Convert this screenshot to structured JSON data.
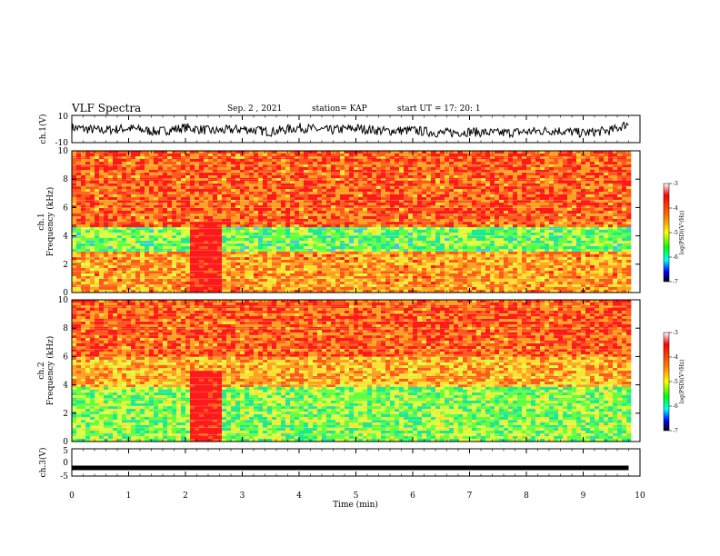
{
  "header": {
    "title": "VLF Spectra",
    "date": "Sep. 2 , 2021",
    "station": "station= KAP",
    "start": "start  UT =   17: 20: 1"
  },
  "chart_data": [
    {
      "type": "line",
      "panel": "ch1-waveform",
      "ylabel": "ch.1(V)",
      "ylim": [
        -10,
        10
      ],
      "yticks": [
        "10",
        "-10"
      ],
      "xlim": [
        0,
        10
      ],
      "series": [
        {
          "x": [
            0,
            0.5,
            1,
            1.5,
            2,
            2.5,
            3,
            3.5,
            4,
            4.5,
            5,
            5.5,
            6,
            6.5,
            7,
            7.5,
            8,
            8.5,
            9,
            9.5,
            9.8
          ],
          "y": [
            1,
            -1,
            0.5,
            -2,
            1,
            -1.5,
            0,
            -2,
            1,
            -1,
            0.5,
            -1.5,
            -1,
            -3,
            -2,
            -3,
            -2,
            -1,
            -3,
            -1,
            4
          ]
        }
      ]
    },
    {
      "type": "heatmap",
      "panel": "ch1-spectrogram",
      "ylabel_top": "ch.1",
      "ylabel": "Frequency (kHz)",
      "ylim": [
        0,
        10
      ],
      "yticks": [
        "0",
        "2",
        "4",
        "6",
        "8",
        "10"
      ],
      "xlim": [
        0,
        10
      ],
      "data_extent_min": 9.8,
      "colorbar": {
        "label": "log(PSD)(V²/Hz)",
        "ticks": [
          "-3",
          "-4",
          "-5",
          "-6",
          "-7"
        ],
        "range": [
          -7,
          -3
        ]
      },
      "dominant_bands_kHz": [
        {
          "from": 0,
          "to": 2.8,
          "log_psd": -4.2
        },
        {
          "from": 2.8,
          "to": 4.6,
          "log_psd": -5.4
        },
        {
          "from": 4.6,
          "to": 10,
          "log_psd": -3.8
        }
      ],
      "anomaly_interval_min": [
        2.1,
        2.65
      ]
    },
    {
      "type": "heatmap",
      "panel": "ch2-spectrogram",
      "ylabel_top": "ch.2",
      "ylabel": "Frequency (kHz)",
      "ylim": [
        0,
        10
      ],
      "yticks": [
        "0",
        "2",
        "4",
        "6",
        "8",
        "10"
      ],
      "xlim": [
        0,
        10
      ],
      "data_extent_min": 9.8,
      "colorbar": {
        "label": "log(PSD)(V²/Hz)",
        "ticks": [
          "-3",
          "-4",
          "-5",
          "-6",
          "-7"
        ],
        "range": [
          -7,
          -3
        ]
      },
      "dominant_bands_kHz": [
        {
          "from": 0,
          "to": 3.8,
          "log_psd": -5.3
        },
        {
          "from": 3.8,
          "to": 6,
          "log_psd": -4.3
        },
        {
          "from": 6,
          "to": 10,
          "log_psd": -3.8
        }
      ],
      "anomaly_interval_min": [
        2.1,
        2.65
      ]
    },
    {
      "type": "line",
      "panel": "ch3-waveform",
      "ylabel": "ch.3(V)",
      "ylim": [
        -5,
        5
      ],
      "yticks": [
        "5",
        "0",
        "-5"
      ],
      "xlim": [
        0,
        10
      ],
      "xlabel": "Time (min)",
      "xticks": [
        "0",
        "1",
        "2",
        "3",
        "4",
        "5",
        "6",
        "7",
        "8",
        "9",
        "10"
      ],
      "series": [
        {
          "x": [
            0,
            9.8
          ],
          "y": [
            -2,
            -2
          ]
        }
      ]
    }
  ]
}
